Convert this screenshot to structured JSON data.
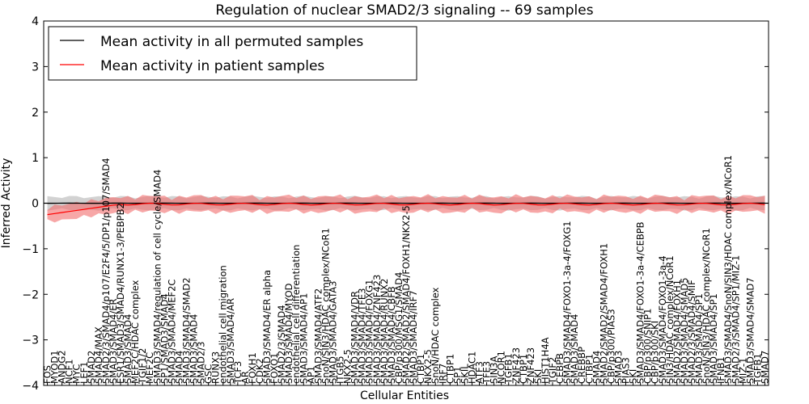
{
  "chart_data": {
    "type": "line",
    "title": "Regulation of nuclear SMAD2/3 signaling -- 69 samples",
    "xlabel": "Cellular Entities",
    "ylabel": "Inferred Activity",
    "ylim": [
      -4,
      4
    ],
    "yticks": [
      -4,
      -3,
      -2,
      -1,
      0,
      1,
      2,
      3,
      4
    ],
    "legend_position": "top-left",
    "colors": {
      "permuted_line": "#000000",
      "permuted_band": "#bfbfbf",
      "patient_line": "#ff0000",
      "patient_band": "#f26d6d"
    },
    "categories": [
      "FOS",
      "MYOD1",
      "ANDG2",
      "NCF1",
      "MYC",
      "LEF1",
      "SMAD2",
      "SMAD4/MAX",
      "SMAD2/3/SMAD4/p107/E2F4/5/DP1/p107/SMAD4",
      "SMAD3/SMAD4/ER",
      "ESR1/SMAD3/SMAD4/RUNX1-3/PEBPB2",
      "SMAD3/SMAD4",
      "MEF2C/HDAC complex",
      "TGIF1/2",
      "MEF2C",
      "SMAD3/SMAD4/regulation of cell cycle/SMAD4",
      "SP1/SMAD3/SMAD4",
      "SMAD3/SMAD4/MEF2C",
      "SMAD4",
      "SMAD3/SMAD4/SMAD2",
      "SMAD3/SMAD4",
      "SMAD2/3",
      "GSC",
      "RUNX3",
      "endothelial cell migration",
      "SMAD3/SMAD4/AR",
      "TCF3",
      "AR",
      "FOXH1",
      "CDK2",
      "SMAD3/SMAD4/ER alpha",
      "FOXO1",
      "SMAD2/3/SMAD4",
      "SMAD3/SMAD4/MYOD",
      "endothelial cell differentiation",
      "SMAD3/SMAD4/AP1",
      "AP1",
      "SMAD3/SMAD4/ATF2",
      "SnoN/SIN3/HDAC complex/NCoR1",
      "SMAD3/SMAD4/GATA3",
      "ITGB5",
      "NKX2-5",
      "SMAD3/SMAD4/VDR",
      "SMAD3/SMAD4/TFE3",
      "SMAD3/SMAD4/FOXG1",
      "SMAD3/SMAD4/ZNF423",
      "SMAD3/SMAD4/RUNX2",
      "SMAD3/SMAD4/CBFB",
      "CBP/p300/MSG1/SMAD4",
      "SMAD2/SMAD2/SMAD4/FOXH1/NKX2-5",
      "SMAD3/SMAD4/IRF7",
      "CTBP1",
      "NKX2-5",
      "SnoN/HDAC complex",
      "IRF7",
      "CTBP1",
      "SP1",
      "SKIL",
      "HDAC1",
      "ATF3",
      "TFE3",
      "SIN3A",
      "NCOR1",
      "TGFB1",
      "ZNF423",
      "CTBP1",
      "ZNF423",
      "SKI",
      "HIST1H4A",
      "TGIF2",
      "CEBPB",
      "SMAD3/SMAD4/FOXO1-3a-4/FOXG1",
      "SMAD3/SMAD4",
      "CREBBP",
      "CTBP1",
      "SMAD4",
      "SMAD2/SMAD2/SMAD4/FOXH1",
      "CBP/p300/PIAS3",
      "SMAD3",
      "PIAS3",
      "SKI",
      "SMAD3/SMAD4/FOXO1-3a-4/CEBPB",
      "CBP/p300/SNIP1",
      "CBP/p300/SKI",
      "SMAD3/SMAD4/FOXO1-3a-4",
      "SIN3/HDAC complex/NCoR1",
      "SMAD2/SMAD4/FOXH1",
      "SMAD3/SMAD4/SMAD5",
      "SMAD2/3/SMAD4/SMIF",
      "SMAD3/SMAD4/SP1",
      "SnoN/SIN3/HDAC complex/NCoR1",
      "SMAD3/SMAD4/SP1",
      "IFNB1",
      "SMAD3/SMAD4/SnoN/SIN3/HDAC complex/NCoR1",
      "SMAD2/3/SMAD4/SP1/MIZ-1",
      "MIZ-1",
      "SMAD3/SMAD4/SMAD7",
      "TGFB1",
      "SMAD7"
    ],
    "series": [
      {
        "name": "Mean activity in all permuted samples",
        "values_note": "near zero throughout",
        "band": "grey ±0.1 to ±0.2"
      },
      {
        "name": "Mean activity in patient samples",
        "values_note": "starts at about -0.25 and rises to about 0, staying near 0",
        "band": "red ±0.1 to ±0.25"
      }
    ],
    "first_points": {
      "x": 0,
      "patient": -0.25,
      "permuted": 0.0
    }
  }
}
